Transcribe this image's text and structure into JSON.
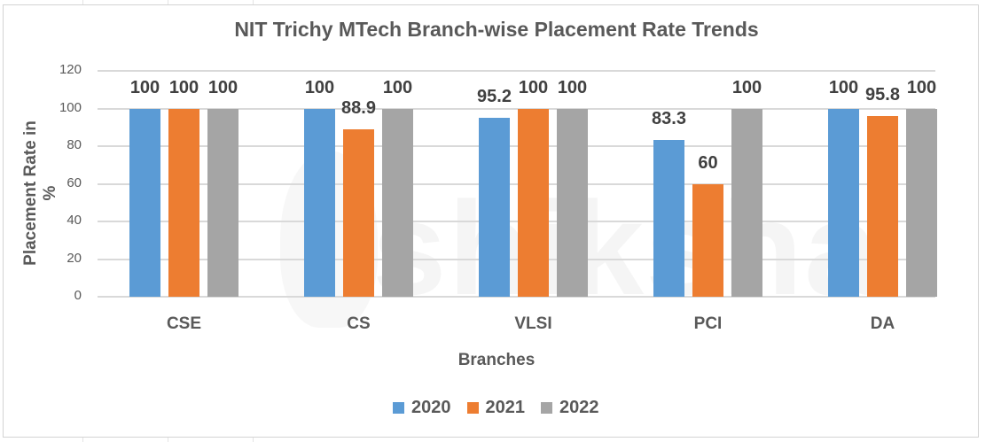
{
  "chart_data": {
    "type": "bar",
    "title": "NIT Trichy MTech Branch-wise Placement Rate Trends",
    "xlabel": "Branches",
    "ylabel": "Placement Rate in %",
    "ylim": [
      0,
      120
    ],
    "yticks": [
      "0",
      "20",
      "40",
      "60",
      "80",
      "100",
      "120"
    ],
    "grid": true,
    "legend_position": "bottom",
    "categories": [
      "CSE",
      "CS",
      "VLSI",
      "PCI",
      "DA"
    ],
    "series": [
      {
        "name": "2020",
        "color": "#5b9bd5",
        "values": [
          100,
          100,
          95.2,
          83.3,
          100
        ]
      },
      {
        "name": "2021",
        "color": "#ed7d31",
        "values": [
          100,
          88.9,
          100,
          60,
          95.8
        ]
      },
      {
        "name": "2022",
        "color": "#a5a5a5",
        "values": [
          100,
          100,
          100,
          100,
          100
        ]
      }
    ],
    "data_labels": [
      [
        "100",
        "100",
        "95.2",
        "83.3",
        "100"
      ],
      [
        "100",
        "88.9",
        "100",
        "60",
        "95.8"
      ],
      [
        "100",
        "100",
        "100",
        "100",
        "100"
      ]
    ],
    "watermark": "shiksha"
  }
}
